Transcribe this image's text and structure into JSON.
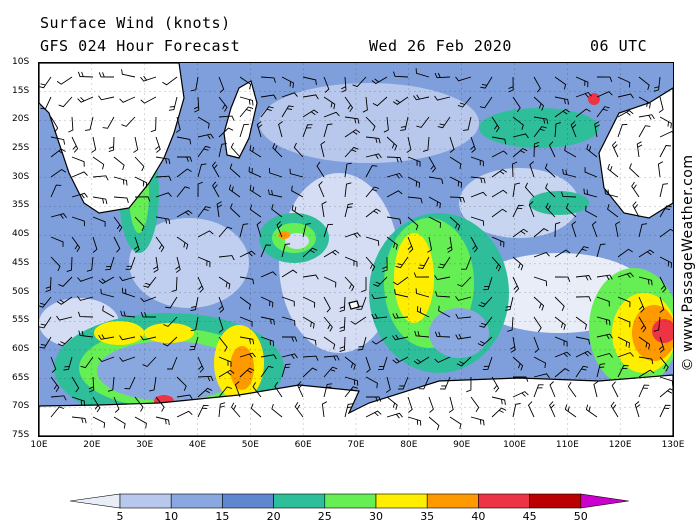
{
  "title": {
    "line1": "Surface Wind (knots)",
    "line2": "GFS 024 Hour Forecast",
    "date": "Wed 26 Feb 2020",
    "time": "06 UTC"
  },
  "credit": "© www.PassageWeather.com",
  "map": {
    "lat_labels": [
      "10S",
      "15S",
      "20S",
      "25S",
      "30S",
      "35S",
      "40S",
      "45S",
      "50S",
      "55S",
      "60S",
      "65S",
      "70S",
      "75S"
    ],
    "lon_labels": [
      "10E",
      "20E",
      "30E",
      "40E",
      "50E",
      "60E",
      "70E",
      "80E",
      "90E",
      "100E",
      "110E",
      "120E",
      "130E"
    ]
  },
  "colorbar": {
    "labels": [
      "5",
      "10",
      "15",
      "20",
      "25",
      "30",
      "35",
      "40",
      "45",
      "50"
    ],
    "colors": [
      "#e8edf8",
      "#b8c8ec",
      "#8aa8e0",
      "#5f87d0",
      "#2ebf9a",
      "#66ee55",
      "#ffee00",
      "#ff9900",
      "#ee3344",
      "#bb0000",
      "#cc00cc"
    ]
  }
}
